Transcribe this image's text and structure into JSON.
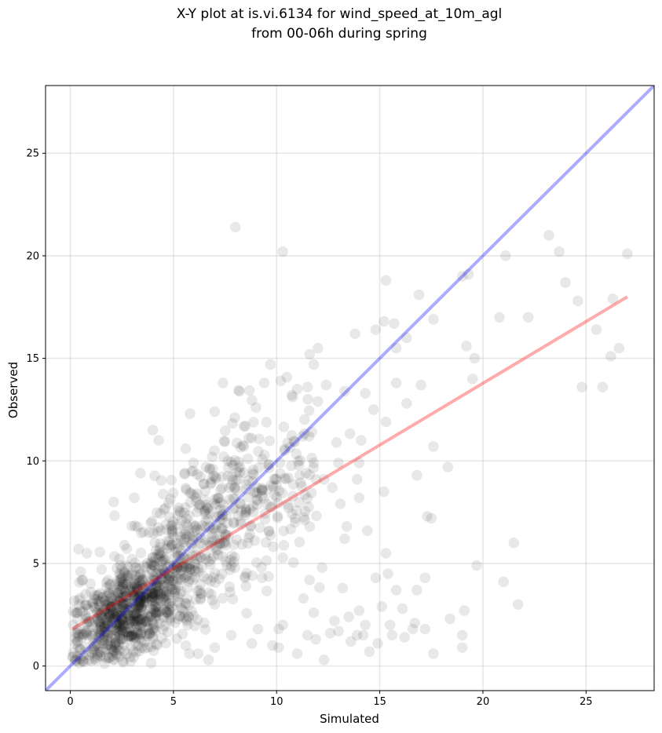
{
  "chart_data": {
    "type": "scatter",
    "title_line1": "X-Y plot at is.vi.6134 for wind_speed_at_10m_agl",
    "title_line2": "from 00-06h during spring",
    "xlabel": "Simulated",
    "ylabel": "Observed",
    "xlim": [
      -1.2,
      28.3
    ],
    "ylim": [
      -1.2,
      28.3
    ],
    "x_ticks": [
      0,
      5,
      10,
      15,
      20,
      25
    ],
    "y_ticks": [
      0,
      5,
      10,
      15,
      20,
      25
    ],
    "x_tick_labels": [
      "0",
      "5",
      "10",
      "15",
      "20",
      "25"
    ],
    "y_tick_labels": [
      "0",
      "5",
      "10",
      "15",
      "20",
      "25"
    ],
    "grid": true,
    "point_color": "#000000",
    "point_opacity": 0.09,
    "identity_line": {
      "x": [
        -1.2,
        28.3
      ],
      "y": [
        -1.2,
        28.3
      ],
      "color": "#0000ff",
      "opacity": 0.33
    },
    "regression_line": {
      "x": [
        0.1,
        27.0
      ],
      "y": [
        1.8,
        18.0
      ],
      "color": "#ff0000",
      "opacity": 0.33
    },
    "outliers": [
      [
        8.0,
        21.4
      ],
      [
        10.3,
        20.2
      ],
      [
        23.2,
        21.0
      ],
      [
        23.7,
        20.2
      ],
      [
        27.0,
        20.1
      ],
      [
        21.1,
        20.0
      ],
      [
        24.0,
        18.7
      ],
      [
        26.3,
        17.9
      ],
      [
        24.6,
        17.8
      ],
      [
        16.9,
        18.1
      ],
      [
        22.2,
        17.0
      ],
      [
        20.8,
        17.0
      ],
      [
        15.3,
        18.8
      ],
      [
        19.0,
        19.0
      ],
      [
        19.3,
        19.1
      ],
      [
        25.5,
        16.4
      ],
      [
        26.6,
        15.5
      ],
      [
        26.2,
        15.1
      ],
      [
        19.6,
        15.0
      ],
      [
        19.2,
        15.6
      ],
      [
        19.5,
        14.0
      ],
      [
        24.8,
        13.6
      ],
      [
        25.8,
        13.6
      ],
      [
        17.6,
        16.9
      ],
      [
        15.2,
        16.8
      ],
      [
        15.7,
        16.7
      ],
      [
        14.8,
        16.4
      ],
      [
        16.3,
        16.0
      ],
      [
        15.8,
        15.5
      ],
      [
        13.8,
        16.2
      ],
      [
        12.0,
        15.5
      ],
      [
        11.6,
        15.2
      ],
      [
        11.8,
        14.7
      ],
      [
        18.3,
        9.7
      ],
      [
        17.6,
        10.7
      ],
      [
        16.8,
        9.3
      ],
      [
        21.5,
        6.0
      ],
      [
        19.7,
        4.9
      ],
      [
        21.0,
        4.1
      ],
      [
        21.7,
        3.0
      ],
      [
        19.1,
        2.7
      ],
      [
        18.4,
        2.3
      ],
      [
        19.0,
        1.5
      ],
      [
        19.0,
        0.9
      ],
      [
        17.6,
        0.6
      ],
      [
        17.2,
        1.8
      ],
      [
        17.5,
        7.2
      ],
      [
        17.3,
        7.3
      ],
      [
        17.2,
        4.3
      ],
      [
        16.8,
        3.7
      ],
      [
        15.8,
        3.7
      ],
      [
        15.4,
        4.5
      ],
      [
        15.3,
        5.5
      ],
      [
        15.2,
        8.5
      ],
      [
        15.3,
        11.9
      ],
      [
        16.3,
        12.8
      ],
      [
        15.8,
        13.8
      ],
      [
        17.0,
        13.7
      ],
      [
        14.3,
        13.3
      ],
      [
        14.7,
        12.5
      ],
      [
        13.3,
        13.4
      ],
      [
        14.1,
        11.0
      ],
      [
        14.0,
        9.9
      ],
      [
        13.9,
        9.1
      ],
      [
        14.0,
        8.2
      ],
      [
        13.4,
        6.8
      ],
      [
        14.4,
        6.6
      ],
      [
        13.3,
        6.2
      ],
      [
        13.2,
        3.8
      ],
      [
        14.8,
        4.3
      ],
      [
        13.5,
        2.4
      ],
      [
        14.9,
        1.1
      ],
      [
        14.5,
        0.7
      ],
      [
        13.9,
        1.5
      ],
      [
        12.6,
        1.6
      ],
      [
        12.3,
        0.3
      ],
      [
        11.0,
        0.6
      ],
      [
        16.1,
        2.8
      ],
      [
        16.7,
        2.1
      ],
      [
        15.5,
        2.0
      ],
      [
        15.6,
        1.5
      ],
      [
        15.1,
        2.9
      ],
      [
        14.2,
        1.5
      ],
      [
        16.2,
        1.4
      ],
      [
        11.8,
        2.6
      ],
      [
        11.9,
        1.3
      ],
      [
        11.5,
        1.5
      ],
      [
        12.7,
        8.7
      ],
      [
        13.0,
        9.9
      ],
      [
        12.9,
        10.9
      ],
      [
        12.3,
        9.1
      ],
      [
        12.0,
        12.9
      ],
      [
        12.4,
        13.7
      ],
      [
        11.5,
        13.6
      ],
      [
        10.2,
        13.9
      ],
      [
        11.0,
        13.5
      ],
      [
        10.1,
        1.8
      ],
      [
        10.1,
        0.9
      ],
      [
        10.3,
        2.0
      ],
      [
        9.8,
        1.0
      ],
      [
        11.3,
        3.3
      ],
      [
        11.6,
        4.2
      ],
      [
        8.2,
        13.4
      ],
      [
        7.4,
        13.8
      ],
      [
        9.4,
        13.8
      ],
      [
        9.0,
        12.6
      ],
      [
        7.0,
        12.4
      ],
      [
        9.7,
        14.7
      ],
      [
        4.0,
        11.5
      ],
      [
        5.8,
        12.3
      ],
      [
        2.1,
        8.0
      ],
      [
        3.4,
        9.4
      ],
      [
        3.1,
        8.2
      ],
      [
        12.2,
        4.8
      ],
      [
        0.4,
        5.7
      ],
      [
        0.8,
        5.5
      ],
      [
        1.0,
        3.6
      ],
      [
        0.6,
        4.2
      ],
      [
        0.5,
        4.6
      ],
      [
        6.7,
        0.3
      ],
      [
        5.6,
        1.0
      ],
      [
        6.2,
        0.6
      ],
      [
        7.0,
        0.9
      ],
      [
        8.8,
        1.1
      ],
      [
        9.1,
        1.8
      ],
      [
        7.8,
        1.5
      ],
      [
        13.0,
        1.7
      ],
      [
        12.8,
        2.2
      ],
      [
        13.6,
        1.2
      ],
      [
        14.3,
        2.0
      ],
      [
        16.6,
        1.8
      ],
      [
        14.0,
        2.7
      ]
    ],
    "dense_cluster": {
      "count": 1250,
      "note": "bulk of observations",
      "components": [
        {
          "weight": 0.55,
          "mx": 2.8,
          "my": 2.6,
          "sx": 1.3,
          "sy": 1.3,
          "rho": 0.45
        },
        {
          "weight": 0.25,
          "mx": 5.5,
          "my": 5.8,
          "sx": 1.6,
          "sy": 2.0,
          "rho": 0.4
        },
        {
          "weight": 0.2,
          "mx": 8.8,
          "my": 8.2,
          "sx": 1.8,
          "sy": 2.2,
          "rho": 0.35
        }
      ]
    }
  }
}
